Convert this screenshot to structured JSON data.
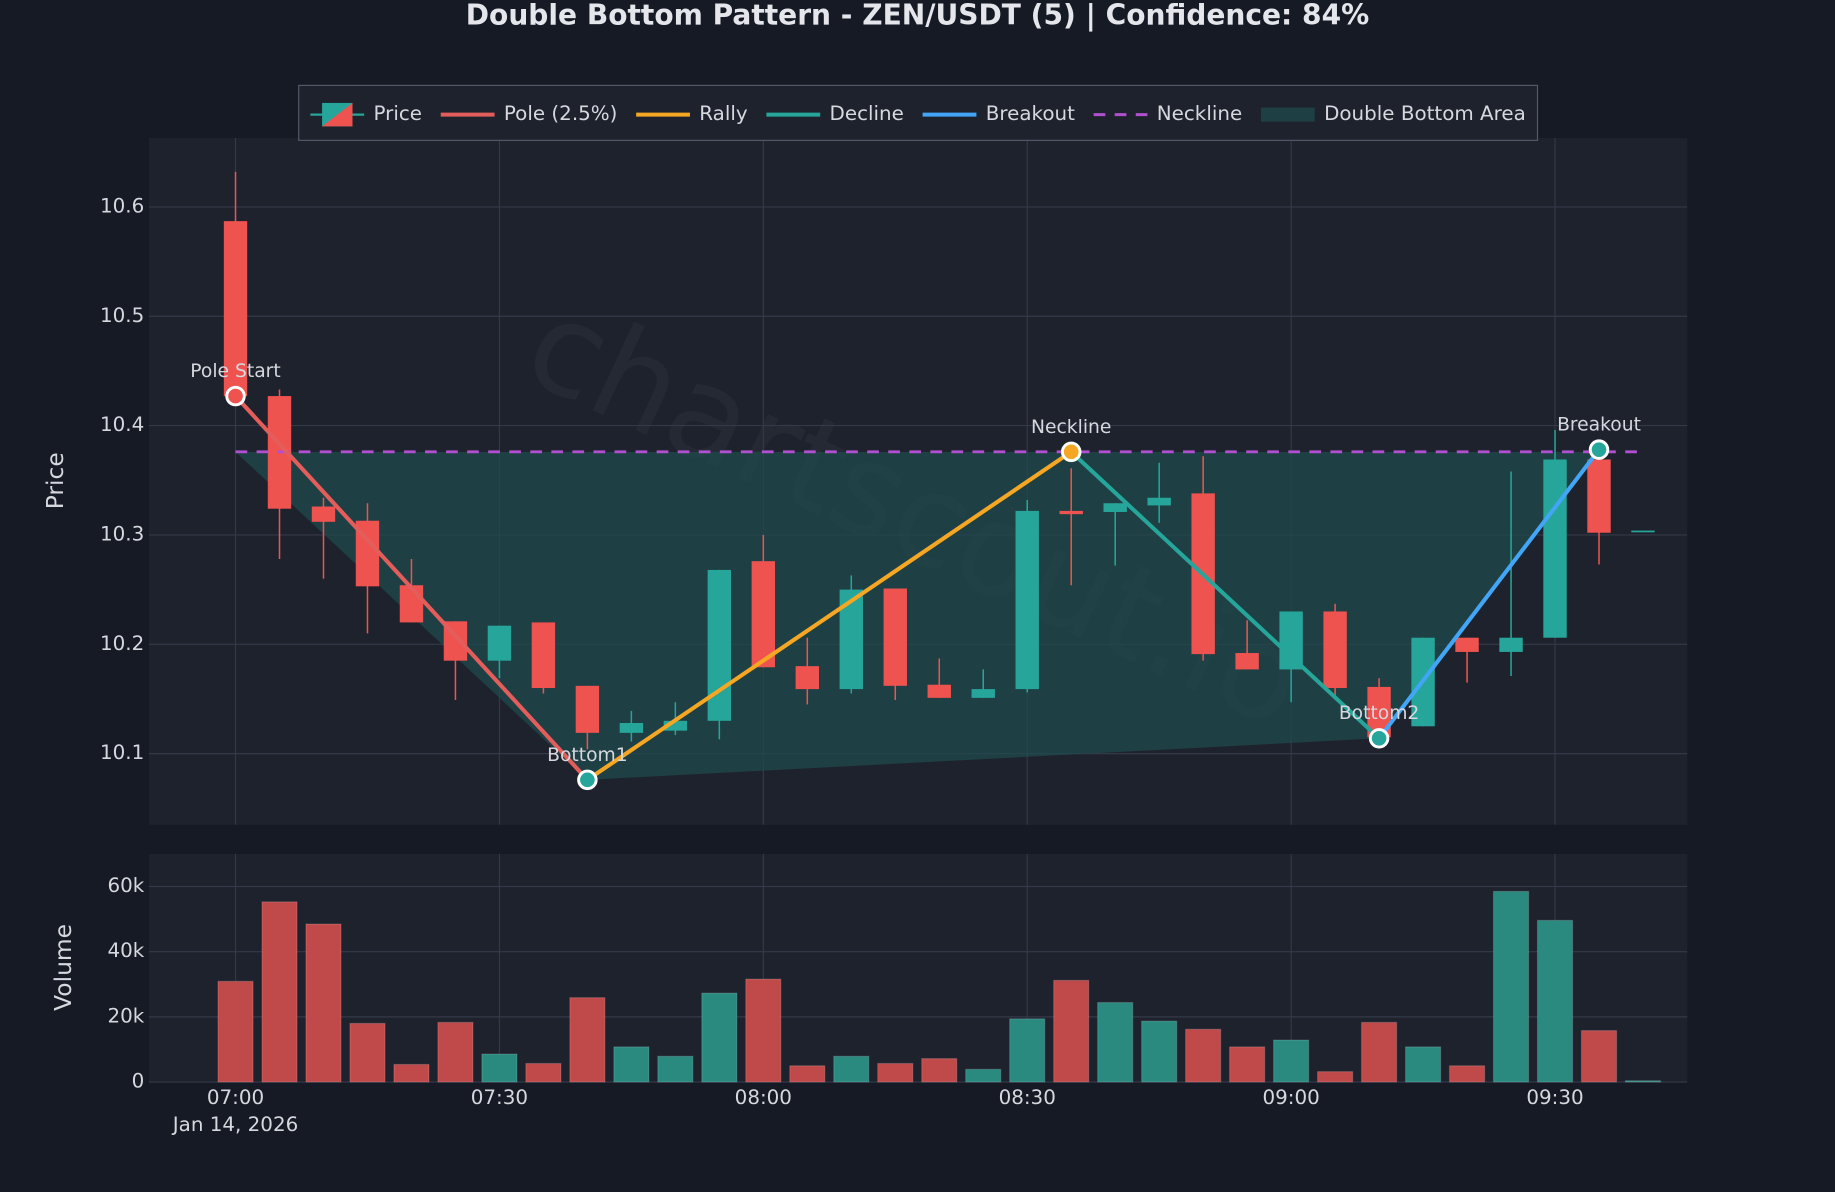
{
  "chart_data": [
    {
      "type": "candlestick",
      "title": "Double Bottom Pattern - ZEN/USDT (5) | Confidence: 84%",
      "ylabel": "Price",
      "name": "Price",
      "watermark": "chartscout.io",
      "x": [
        "07:00",
        "07:05",
        "07:10",
        "07:15",
        "07:20",
        "07:25",
        "07:30",
        "07:35",
        "07:40",
        "07:45",
        "07:50",
        "07:55",
        "08:00",
        "08:05",
        "08:10",
        "08:15",
        "08:20",
        "08:25",
        "08:30",
        "08:35",
        "08:40",
        "08:45",
        "08:50",
        "08:55",
        "09:00",
        "09:05",
        "09:10",
        "09:15",
        "09:20",
        "09:25",
        "09:30",
        "09:35",
        "09:40"
      ],
      "open": [
        10.587,
        10.427,
        10.326,
        10.313,
        10.254,
        10.221,
        10.185,
        10.22,
        10.162,
        10.119,
        10.121,
        10.13,
        10.276,
        10.18,
        10.159,
        10.251,
        10.163,
        10.151,
        10.159,
        10.322,
        10.321,
        10.327,
        10.338,
        10.192,
        10.177,
        10.23,
        10.161,
        10.125,
        10.206,
        10.193,
        10.206,
        10.369,
        10.304
      ],
      "high": [
        10.632,
        10.433,
        10.334,
        10.329,
        10.278,
        10.221,
        10.217,
        10.22,
        10.162,
        10.139,
        10.147,
        10.268,
        10.3,
        10.206,
        10.263,
        10.251,
        10.187,
        10.177,
        10.332,
        10.361,
        10.329,
        10.366,
        10.372,
        10.222,
        10.23,
        10.237,
        10.169,
        10.206,
        10.206,
        10.358,
        10.396,
        10.369,
        10.304
      ],
      "low": [
        10.42,
        10.278,
        10.26,
        10.21,
        10.22,
        10.149,
        10.169,
        10.155,
        10.104,
        10.111,
        10.117,
        10.113,
        10.179,
        10.145,
        10.155,
        10.149,
        10.151,
        10.151,
        10.156,
        10.254,
        10.272,
        10.311,
        10.185,
        10.177,
        10.147,
        10.152,
        10.109,
        10.125,
        10.165,
        10.171,
        10.206,
        10.273,
        10.304
      ],
      "close": [
        10.427,
        10.324,
        10.312,
        10.253,
        10.22,
        10.185,
        10.217,
        10.16,
        10.119,
        10.128,
        10.13,
        10.268,
        10.179,
        10.159,
        10.25,
        10.162,
        10.151,
        10.159,
        10.322,
        10.319,
        10.329,
        10.334,
        10.191,
        10.177,
        10.23,
        10.16,
        10.115,
        10.206,
        10.193,
        10.206,
        10.369,
        10.302,
        10.304
      ],
      "up_color": "#26a69a",
      "down_color": "#ef5350",
      "ylim": [
        10.035,
        10.663
      ],
      "yticks": [
        10.1,
        10.2,
        10.3,
        10.4,
        10.5,
        10.6
      ],
      "grid": true,
      "legend_loc": "upper center",
      "points": [
        {
          "label": "Pole Start",
          "x": "07:00",
          "y": 10.427,
          "color": "#ef5350"
        },
        {
          "label": "Bottom1",
          "x": "07:40",
          "y": 10.076,
          "color": "#26a69a"
        },
        {
          "label": "Neckline",
          "x": "08:35",
          "y": 10.376,
          "color": "#f5a623"
        },
        {
          "label": "Bottom2",
          "x": "09:10",
          "y": 10.114,
          "color": "#26a69a"
        },
        {
          "label": "Breakout",
          "x": "09:35",
          "y": 10.378,
          "color": "#26a69a"
        }
      ],
      "segments": [
        {
          "name": "Pole (2.5%)",
          "color": "#e35d5b",
          "from": "Pole Start",
          "to": "Bottom1"
        },
        {
          "name": "Rally",
          "color": "#f5a623",
          "from": "Bottom1",
          "to": "Neckline"
        },
        {
          "name": "Decline",
          "color": "#26a69a",
          "from": "Neckline",
          "to": "Bottom2"
        },
        {
          "name": "Breakout",
          "color": "#42a5f5",
          "from": "Bottom2",
          "to": "Breakout"
        }
      ],
      "neckline": {
        "name": "Neckline",
        "value": 10.376,
        "color": "#b04fd0"
      },
      "area": {
        "name": "Double Bottom Area",
        "color": "#1f4a4c"
      }
    },
    {
      "type": "bar",
      "ylabel": "Volume",
      "values": [
        30900,
        55300,
        48500,
        18000,
        5400,
        18300,
        8600,
        5700,
        25900,
        10800,
        7900,
        27300,
        31600,
        5000,
        7900,
        5700,
        7200,
        3900,
        19400,
        31200,
        24400,
        18700,
        16200,
        10800,
        12900,
        3200,
        18300,
        10800,
        5000,
        58500,
        49600,
        15800,
        400
      ],
      "up_color": "#2a8a80",
      "down_color": "#c04a4a",
      "ylim": [
        0,
        70000
      ],
      "yticks": [
        0,
        {
          "value": 20000,
          "label": "20k"
        },
        {
          "value": 40000,
          "label": "40k"
        },
        {
          "value": 60000,
          "label": "60k"
        }
      ],
      "xticks": [
        "07:00",
        "07:30",
        "08:00",
        "08:30",
        "09:00",
        "09:30"
      ],
      "date_label": "Jan 14, 2026",
      "grid": true
    }
  ]
}
